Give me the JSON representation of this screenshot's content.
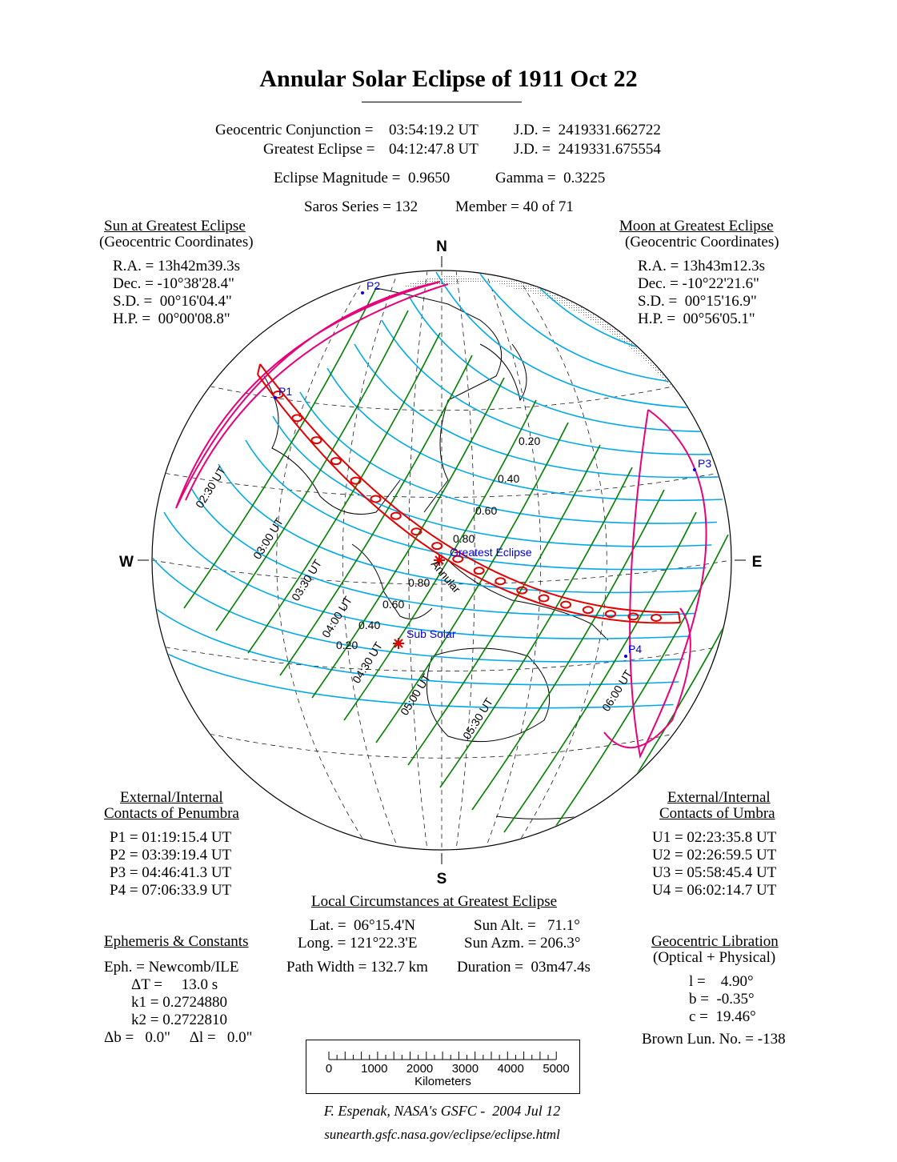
{
  "title": "Annular Solar Eclipse of  1911 Oct 22",
  "header": {
    "conjunction_label": "Geocentric Conjunction =",
    "conjunction_value": "03:54:19.2 UT",
    "conjunction_jd": "J.D. =  2419331.662722",
    "greatest_label": "Greatest Eclipse =",
    "greatest_value": "04:12:47.8 UT",
    "greatest_jd": "J.D. =  2419331.675554",
    "magnitude": "Eclipse Magnitude =  0.9650",
    "gamma": "Gamma =  0.3225",
    "saros": "Saros Series = 132",
    "member": "Member = 40 of 71"
  },
  "sun": {
    "title": "Sun at Greatest Eclipse",
    "subtitle": "(Geocentric Coordinates)",
    "lines": [
      "R.A. = 13h42m39.3s",
      "Dec. = -10°38'28.4\"",
      "S.D. =  00°16'04.4\"",
      "H.P. =  00°00'08.8\""
    ]
  },
  "moon": {
    "title": "Moon at Greatest Eclipse",
    "subtitle": "(Geocentric Coordinates)",
    "lines": [
      "R.A. = 13h43m12.3s",
      "Dec. = -10°22'21.6\"",
      "S.D. =  00°15'16.9\"",
      "H.P. =  00°56'05.1\""
    ]
  },
  "penumbra": {
    "title1": "External/Internal",
    "title2": "Contacts of Penumbra",
    "lines": [
      "P1 = 01:19:15.4 UT",
      "P2 = 03:39:19.4 UT",
      "P3 = 04:46:41.3 UT",
      "P4 = 07:06:33.9 UT"
    ]
  },
  "umbra": {
    "title1": "External/Internal",
    "title2": "Contacts of Umbra",
    "lines": [
      "U1 = 02:23:35.8 UT",
      "U2 = 02:26:59.5 UT",
      "U3 = 05:58:45.4 UT",
      "U4 = 06:02:14.7 UT"
    ]
  },
  "local": {
    "title": "Local Circumstances at Greatest Eclipse",
    "lat": "Lat. =  06°15.4'N",
    "long": "Long. = 121°22.3'E",
    "sun_alt": "Sun Alt. =   71.1°",
    "sun_azm": "Sun Azm. = 206.3°",
    "path_width": "Path Width = 132.7 km",
    "duration": "Duration =  03m47.4s"
  },
  "ephemeris": {
    "title": "Ephemeris & Constants",
    "eph": "Eph. = Newcomb/ILE",
    "dt": "ΔT =     13.0 s",
    "k1": "k1 = 0.2724880",
    "k2": "k2 = 0.2722810",
    "db": "Δb =   0.0\"     Δl =   0.0\""
  },
  "libration": {
    "title": "Geocentric Libration",
    "subtitle": "(Optical + Physical)",
    "l": "l =    4.90°",
    "b": "b =  -0.35°",
    "c": "c =  19.46°",
    "brown": "Brown Lun. No. = -138"
  },
  "map": {
    "compass": {
      "n": "N",
      "s": "S",
      "e": "E",
      "w": "W"
    },
    "greatest_eclipse": "Greatest Eclipse",
    "sub_solar": "Sub Solar",
    "annular": "Annular",
    "contacts": [
      "P1",
      "P2",
      "P3",
      "P4"
    ],
    "magnitudes_upper": [
      "0.20",
      "0.40",
      "0.60",
      "0.80"
    ],
    "magnitudes_lower": [
      "0.80",
      "0.60",
      "0.40",
      "0.20"
    ],
    "times": [
      "02:30 UT",
      "03:00 UT",
      "03:30 UT",
      "04:00 UT",
      "04:30 UT",
      "05:00 UT",
      "05:30 UT",
      "06:00 UT"
    ],
    "colors": {
      "magnitude_lines": "#00a8e8",
      "time_lines": "#008000",
      "central_path": "#e00000",
      "penumbra_limits": "#e8007a",
      "labels": "#0000e0"
    }
  },
  "scale": {
    "ticks": [
      "0",
      "1000",
      "2000",
      "3000",
      "4000",
      "5000"
    ],
    "unit": "Kilometers"
  },
  "credit": "F. Espenak, NASA's GSFC -  2004 Jul 12",
  "url": "sunearth.gsfc.nasa.gov/eclipse/eclipse.html"
}
